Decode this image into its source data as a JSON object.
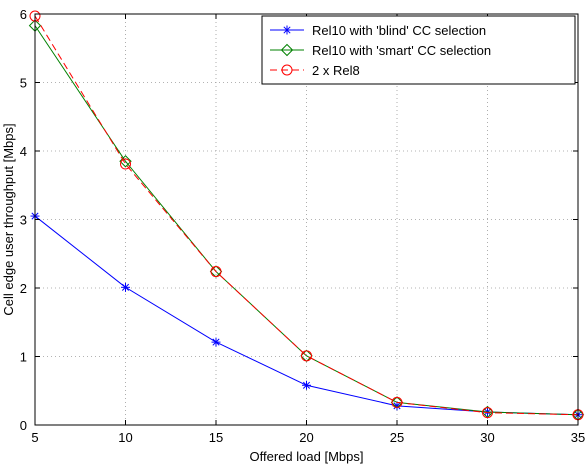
{
  "chart_data": {
    "type": "line",
    "xlabel": "Offered load [Mbps]",
    "ylabel": "Cell edge user throughput [Mbps]",
    "xlim": [
      5,
      35
    ],
    "ylim": [
      0,
      6
    ],
    "xticks": [
      5,
      10,
      15,
      20,
      25,
      30,
      35
    ],
    "yticks": [
      0,
      1,
      2,
      3,
      4,
      5,
      6
    ],
    "grid": true,
    "legend_position": "top-right",
    "x": [
      5,
      10,
      15,
      20,
      25,
      30,
      35
    ],
    "series": [
      {
        "name": "Rel10 with 'blind' CC selection",
        "values": [
          3.05,
          2.01,
          1.21,
          0.58,
          0.28,
          0.19,
          0.15
        ],
        "color": "#0000ff",
        "marker": "asterisk",
        "line_style": "solid"
      },
      {
        "name": "Rel10 with 'smart' CC selection",
        "values": [
          5.83,
          3.85,
          2.24,
          1.01,
          0.33,
          0.19,
          0.15
        ],
        "color": "#008000",
        "marker": "diamond",
        "line_style": "solid"
      },
      {
        "name": "2 x Rel8",
        "values": [
          5.97,
          3.81,
          2.24,
          1.01,
          0.33,
          0.18,
          0.15
        ],
        "color": "#ff0000",
        "marker": "circle",
        "line_style": "dashed"
      }
    ]
  }
}
